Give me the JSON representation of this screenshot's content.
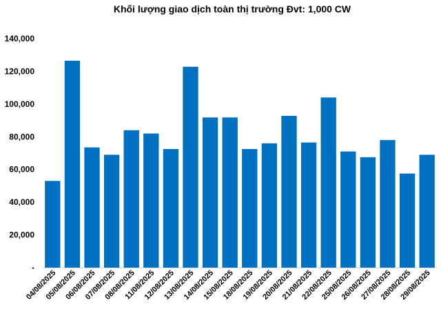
{
  "chart_data": {
    "type": "bar",
    "title": "Khối lượng giao dịch toàn thị trường Đvt: 1,000 CW",
    "xlabel": "",
    "ylabel": "",
    "ylim": [
      0,
      140000
    ],
    "yticks": [
      "-",
      "20,000",
      "40,000",
      "60,000",
      "80,000",
      "100,000",
      "120,000",
      "140,000"
    ],
    "ytick_values": [
      0,
      20000,
      40000,
      60000,
      80000,
      100000,
      120000,
      140000
    ],
    "grid": false,
    "legend": "none",
    "bar_color": "#0070C0",
    "categories": [
      "04/08/2025",
      "05/08/2025",
      "06/08/2025",
      "07/08/2025",
      "08/08/2025",
      "11/08/2025",
      "12/08/2025",
      "13/08/2025",
      "14/08/2025",
      "15/08/2025",
      "18/08/2025",
      "19/08/2025",
      "20/08/2025",
      "21/08/2025",
      "22/08/2025",
      "25/08/2025",
      "26/08/2025",
      "27/08/2025",
      "28/08/2025",
      "29/08/2025"
    ],
    "values": [
      53000,
      126500,
      73500,
      69000,
      84000,
      82000,
      72500,
      122800,
      91800,
      91800,
      72500,
      76000,
      92800,
      76500,
      104000,
      71000,
      67500,
      78000,
      57500,
      69000
    ]
  }
}
